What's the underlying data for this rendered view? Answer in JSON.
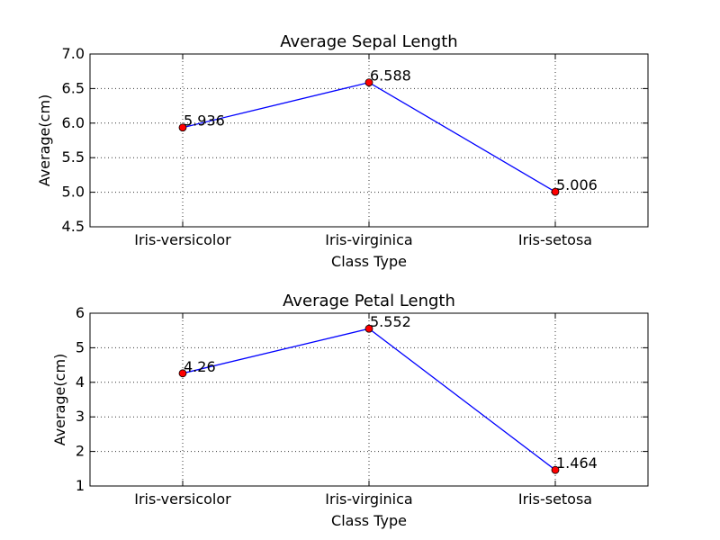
{
  "chart_data": [
    {
      "type": "line",
      "title": "Average Sepal Length",
      "xlabel": "Class Type",
      "ylabel": "Average(cm)",
      "categories": [
        "Iris-versicolor",
        "Iris-virginica",
        "Iris-setosa"
      ],
      "values": [
        5.936,
        6.588,
        5.006
      ],
      "data_labels": [
        "5.936",
        "6.588",
        "5.006"
      ],
      "ylim": [
        4.5,
        7.0
      ],
      "yticks": [
        4.5,
        5.0,
        5.5,
        6.0,
        6.5,
        7.0
      ],
      "ytick_labels": [
        "4.5",
        "5.0",
        "5.5",
        "6.0",
        "6.5",
        "7.0"
      ],
      "grid": true,
      "line_color": "#0000ff",
      "marker_color": "#ff0000"
    },
    {
      "type": "line",
      "title": "Average Petal Length",
      "xlabel": "Class Type",
      "ylabel": "Average(cm)",
      "categories": [
        "Iris-versicolor",
        "Iris-virginica",
        "Iris-setosa"
      ],
      "values": [
        4.26,
        5.552,
        1.464
      ],
      "data_labels": [
        "4.26",
        "5.552",
        "1.464"
      ],
      "ylim": [
        1,
        6
      ],
      "yticks": [
        1,
        2,
        3,
        4,
        5,
        6
      ],
      "ytick_labels": [
        "1",
        "2",
        "3",
        "4",
        "5",
        "6"
      ],
      "grid": true,
      "line_color": "#0000ff",
      "marker_color": "#ff0000"
    }
  ]
}
